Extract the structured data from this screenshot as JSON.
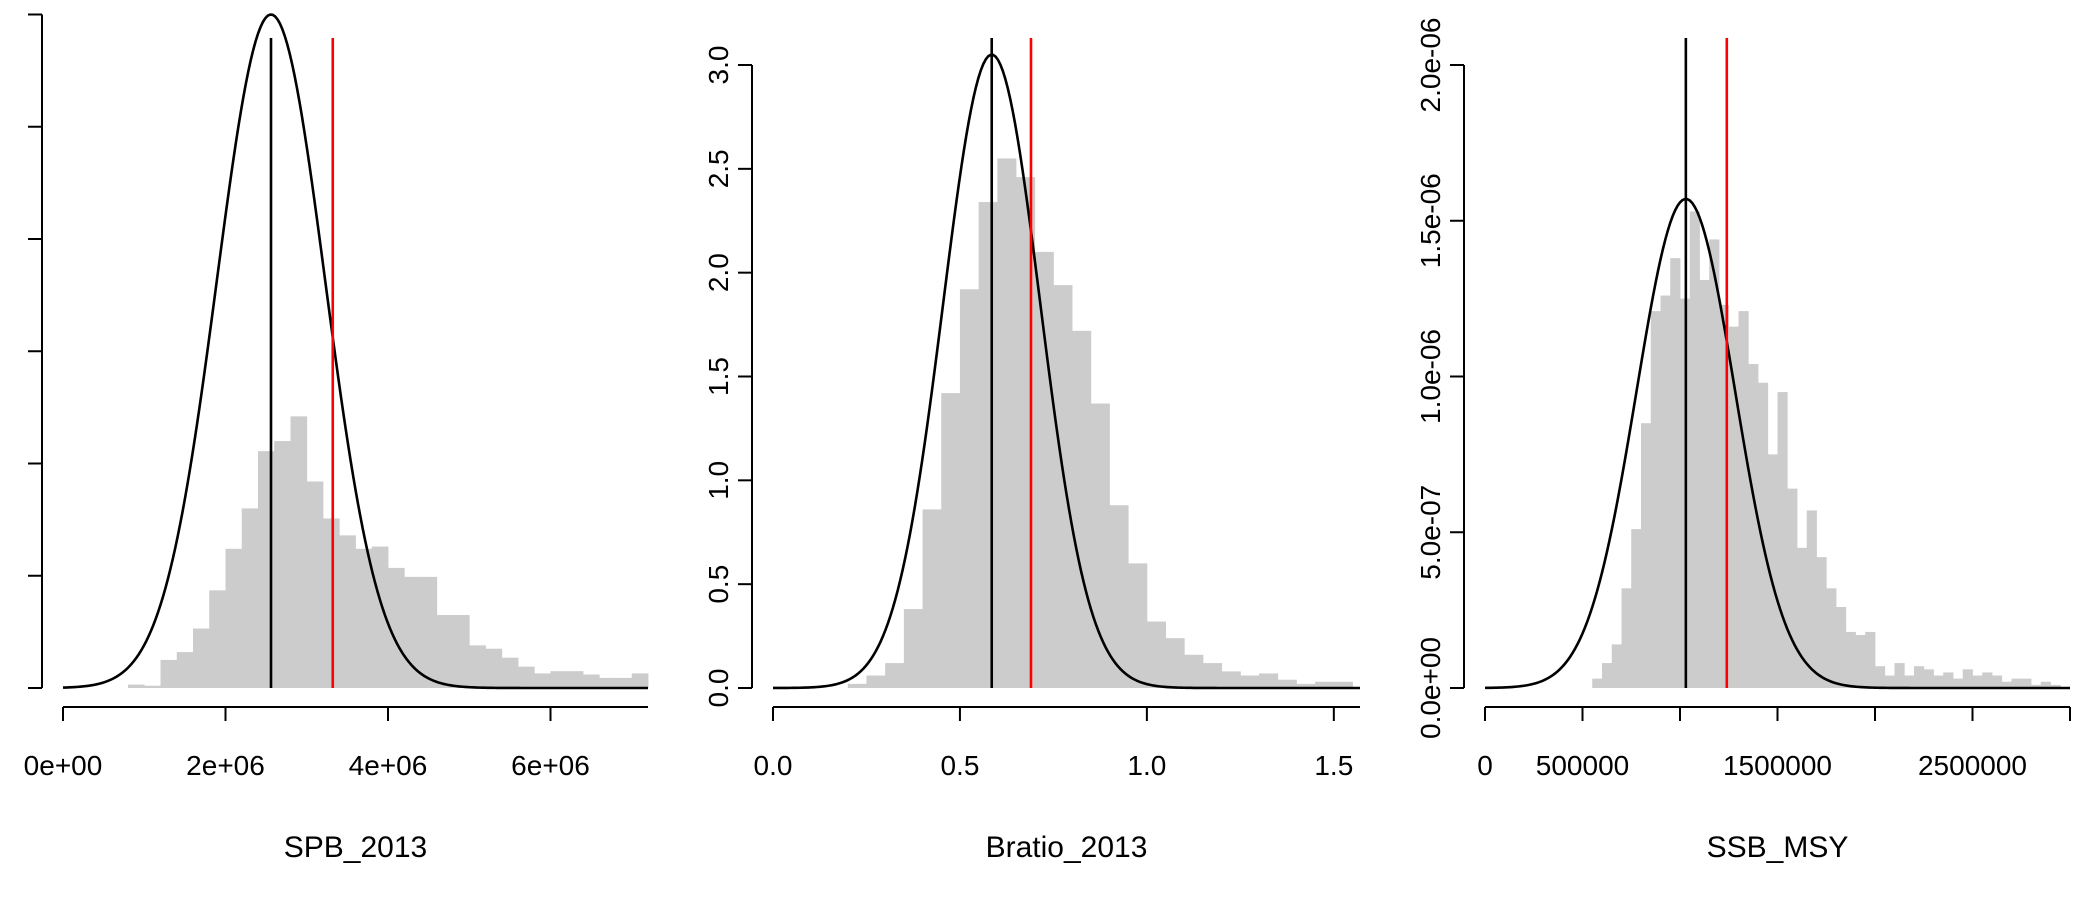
{
  "colors": {
    "histogram": "#cccccc",
    "density_curve": "#000000",
    "median_line": "#000000",
    "reference_line": "#ff0000"
  },
  "chart_data": [
    {
      "type": "bar",
      "xlabel": "SPB_2013",
      "ylabel": "",
      "xlim": [
        0,
        7200000
      ],
      "ylim": [
        0,
        5.55e-07
      ],
      "x_ticks": [
        {
          "value": 0,
          "label": "0e+00"
        },
        {
          "value": 2000000,
          "label": "2e+06"
        },
        {
          "value": 4000000,
          "label": "4e+06"
        },
        {
          "value": 6000000,
          "label": "6e+06"
        }
      ],
      "y_ticks": [
        {
          "value": 0,
          "label": ""
        },
        {
          "value": 1e-07,
          "label": ""
        },
        {
          "value": 2e-07,
          "label": ""
        },
        {
          "value": 3e-07,
          "label": ""
        },
        {
          "value": 4e-07,
          "label": ""
        },
        {
          "value": 5e-07,
          "label": ""
        },
        {
          "value": 6e-07,
          "label": ""
        }
      ],
      "histogram": {
        "bin_width": 200000,
        "bin_starts": [
          800000,
          1000000,
          1200000,
          1400000,
          1600000,
          1800000,
          2000000,
          2200000,
          2400000,
          2600000,
          2800000,
          3000000,
          3200000,
          3400000,
          3600000,
          3800000,
          4000000,
          4200000,
          4400000,
          4600000,
          4800000,
          5000000,
          5200000,
          5400000,
          5600000,
          5800000,
          6000000,
          6200000,
          6400000,
          6600000,
          6800000,
          7000000
        ],
        "values": [
          3e-09,
          2e-09,
          2.5e-08,
          3.2e-08,
          5.3e-08,
          8.7e-08,
          1.24e-07,
          1.6e-07,
          2.11e-07,
          2.2e-07,
          2.42e-07,
          1.84e-07,
          1.51e-07,
          1.36e-07,
          1.24e-07,
          1.26e-07,
          1.07e-07,
          9.9e-08,
          9.9e-08,
          6.5e-08,
          6.5e-08,
          3.8e-08,
          3.5e-08,
          2.7e-08,
          1.9e-08,
          1.3e-08,
          1.5e-08,
          1.5e-08,
          1.2e-08,
          9e-09,
          9e-09,
          1.3e-08
        ]
      },
      "density_curve": {
        "type": "normal",
        "mean": 2560000,
        "sd": 665000,
        "peak": 6e-07,
        "x_from": 0,
        "x_to": 7200000
      },
      "vertical_lines": [
        {
          "name": "median",
          "x": 2560000,
          "color": "#000000"
        },
        {
          "name": "reference",
          "x": 3320000,
          "color": "#ff0000"
        }
      ]
    },
    {
      "type": "bar",
      "xlabel": "Bratio_2013",
      "ylabel": "",
      "xlim": [
        0,
        1.57
      ],
      "ylim": [
        0,
        3.0
      ],
      "x_ticks": [
        {
          "value": 0,
          "label": "0.0"
        },
        {
          "value": 0.5,
          "label": "0.5"
        },
        {
          "value": 1.0,
          "label": "1.0"
        },
        {
          "value": 1.5,
          "label": "1.5"
        }
      ],
      "y_ticks": [
        {
          "value": 0,
          "label": "0.0"
        },
        {
          "value": 0.5,
          "label": "0.5"
        },
        {
          "value": 1.0,
          "label": "1.0"
        },
        {
          "value": 1.5,
          "label": "1.5"
        },
        {
          "value": 2.0,
          "label": "2.0"
        },
        {
          "value": 2.5,
          "label": "2.5"
        },
        {
          "value": 3.0,
          "label": "3.0"
        }
      ],
      "histogram": {
        "bin_width": 0.05,
        "bin_starts": [
          0.2,
          0.25,
          0.3,
          0.35,
          0.4,
          0.45,
          0.5,
          0.55,
          0.6,
          0.65,
          0.7,
          0.75,
          0.8,
          0.85,
          0.9,
          0.95,
          1.0,
          1.05,
          1.1,
          1.15,
          1.2,
          1.25,
          1.3,
          1.35,
          1.4,
          1.45,
          1.5
        ],
        "values": [
          0.02,
          0.06,
          0.12,
          0.38,
          0.86,
          1.42,
          1.92,
          2.34,
          2.55,
          2.46,
          2.1,
          1.94,
          1.72,
          1.37,
          0.88,
          0.6,
          0.32,
          0.24,
          0.16,
          0.12,
          0.08,
          0.06,
          0.07,
          0.04,
          0.02,
          0.03,
          0.03
        ]
      },
      "density_curve": {
        "type": "normal",
        "mean": 0.585,
        "sd": 0.13,
        "peak": 3.05,
        "x_from": 0,
        "x_to": 1.57
      },
      "vertical_lines": [
        {
          "name": "median",
          "x": 0.585,
          "color": "#000000"
        },
        {
          "name": "reference",
          "x": 0.69,
          "color": "#ff0000"
        }
      ]
    },
    {
      "type": "bar",
      "xlabel": "SSB_MSY",
      "ylabel": "",
      "xlim": [
        0,
        3000000
      ],
      "ylim": [
        0,
        2e-06
      ],
      "x_ticks": [
        {
          "value": 0,
          "label": "0"
        },
        {
          "value": 500000,
          "label": "500000"
        },
        {
          "value": 1000000,
          "label": ""
        },
        {
          "value": 1500000,
          "label": "1500000"
        },
        {
          "value": 2000000,
          "label": ""
        },
        {
          "value": 2500000,
          "label": "2500000"
        },
        {
          "value": 3000000,
          "label": ""
        }
      ],
      "y_ticks": [
        {
          "value": 0,
          "label": "0.0e+00"
        },
        {
          "value": 5e-07,
          "label": "5.0e-07"
        },
        {
          "value": 1e-06,
          "label": "1.0e-06"
        },
        {
          "value": 1.5e-06,
          "label": "1.5e-06"
        },
        {
          "value": 2e-06,
          "label": "2.0e-06"
        }
      ],
      "histogram": {
        "bin_width": 50000,
        "bin_starts": [
          550000,
          600000,
          650000,
          700000,
          750000,
          800000,
          850000,
          900000,
          950000,
          1000000,
          1050000,
          1100000,
          1150000,
          1200000,
          1250000,
          1300000,
          1350000,
          1400000,
          1450000,
          1500000,
          1550000,
          1600000,
          1650000,
          1700000,
          1750000,
          1800000,
          1850000,
          1900000,
          1950000,
          2000000,
          2050000,
          2100000,
          2150000,
          2200000,
          2250000,
          2300000,
          2350000,
          2400000,
          2450000,
          2500000,
          2550000,
          2600000,
          2650000,
          2700000,
          2750000,
          2800000,
          2850000,
          2900000
        ],
        "values": [
          3e-08,
          8e-08,
          1.4e-07,
          3.2e-07,
          5.1e-07,
          8.5e-07,
          1.21e-06,
          1.26e-06,
          1.38e-06,
          1.25e-06,
          1.53e-06,
          1.31e-06,
          1.44e-06,
          1.23e-06,
          1.16e-06,
          1.21e-06,
          1.04e-06,
          9.8e-07,
          7.5e-07,
          9.5e-07,
          6.4e-07,
          4.5e-07,
          5.7e-07,
          4.2e-07,
          3.2e-07,
          2.6e-07,
          1.8e-07,
          1.7e-07,
          1.8e-07,
          7e-08,
          4e-08,
          8e-08,
          4e-08,
          7e-08,
          6e-08,
          4e-08,
          5e-08,
          3e-08,
          6e-08,
          4e-08,
          5e-08,
          4e-08,
          2e-08,
          3e-08,
          3e-08,
          1e-08,
          2e-08,
          1e-08
        ]
      },
      "density_curve": {
        "type": "normal",
        "mean": 1030000,
        "sd": 253000,
        "peak": 1.57e-06,
        "x_from": 0,
        "x_to": 3000000
      },
      "vertical_lines": [
        {
          "name": "median",
          "x": 1030000,
          "color": "#000000"
        },
        {
          "name": "reference",
          "x": 1240000,
          "color": "#ff0000"
        }
      ]
    }
  ]
}
